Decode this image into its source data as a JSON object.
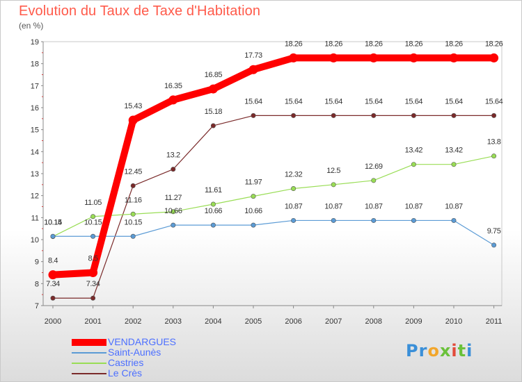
{
  "header": {
    "title": "Evolution du Taux de Taxe d'Habitation",
    "unit": "(en %)"
  },
  "chart_data": {
    "type": "line",
    "x": [
      "2000",
      "2001",
      "2002",
      "2003",
      "2004",
      "2005",
      "2006",
      "2007",
      "2008",
      "2009",
      "2010",
      "2011"
    ],
    "ylim": [
      7,
      19
    ],
    "yticks": [
      7,
      8,
      9,
      10,
      11,
      12,
      13,
      14,
      15,
      16,
      17,
      18,
      19
    ],
    "grid": false,
    "legend_position": "bottom-left",
    "series": [
      {
        "name": "VENDARGUES",
        "color": "#ff0000",
        "values": [
          8.4,
          8.5,
          15.43,
          16.35,
          16.85,
          17.73,
          18.26,
          18.26,
          18.26,
          18.26,
          18.26,
          18.26
        ],
        "labels": [
          "8.4",
          "8.5",
          "15.43",
          "16.35",
          "16.85",
          "17.73",
          "18.26",
          "18.26",
          "18.26",
          "18.26",
          "18.26",
          "18.26"
        ]
      },
      {
        "name": "Saint-Aunès",
        "color": "#5b9bd5",
        "values": [
          10.15,
          10.15,
          10.15,
          10.66,
          10.66,
          10.66,
          10.87,
          10.87,
          10.87,
          10.87,
          10.87,
          9.75
        ],
        "labels": [
          "10.15",
          "10.15",
          "10.15",
          "10.66",
          "10.66",
          "10.66",
          "10.87",
          "10.87",
          "10.87",
          "10.87",
          "10.87",
          "9.75"
        ]
      },
      {
        "name": "Castries",
        "color": "#99dd55",
        "values": [
          10.14,
          11.05,
          11.16,
          11.27,
          11.61,
          11.97,
          12.32,
          12.5,
          12.69,
          13.42,
          13.42,
          13.8
        ],
        "labels": [
          "10.14",
          "11.05",
          "11.16",
          "11.27",
          "11.61",
          "11.97",
          "12.32",
          "12.5",
          "12.69",
          "13.42",
          "13.42",
          "13.8"
        ]
      },
      {
        "name": "Le Crès",
        "color": "#7a2a2a",
        "values": [
          7.34,
          7.34,
          12.45,
          13.2,
          15.18,
          15.64,
          15.64,
          15.64,
          15.64,
          15.64,
          15.64,
          15.64
        ],
        "labels": [
          "7.34",
          "7.34",
          "12.45",
          "13.2",
          "15.18",
          "15.64",
          "15.64",
          "15.64",
          "15.64",
          "15.64",
          "15.64",
          "15.64"
        ]
      }
    ]
  },
  "legend": {
    "items": [
      "VENDARGUES",
      "Saint-Aunès",
      "Castries",
      "Le Crès"
    ]
  },
  "branding": {
    "logo_text": "Proxiti"
  }
}
